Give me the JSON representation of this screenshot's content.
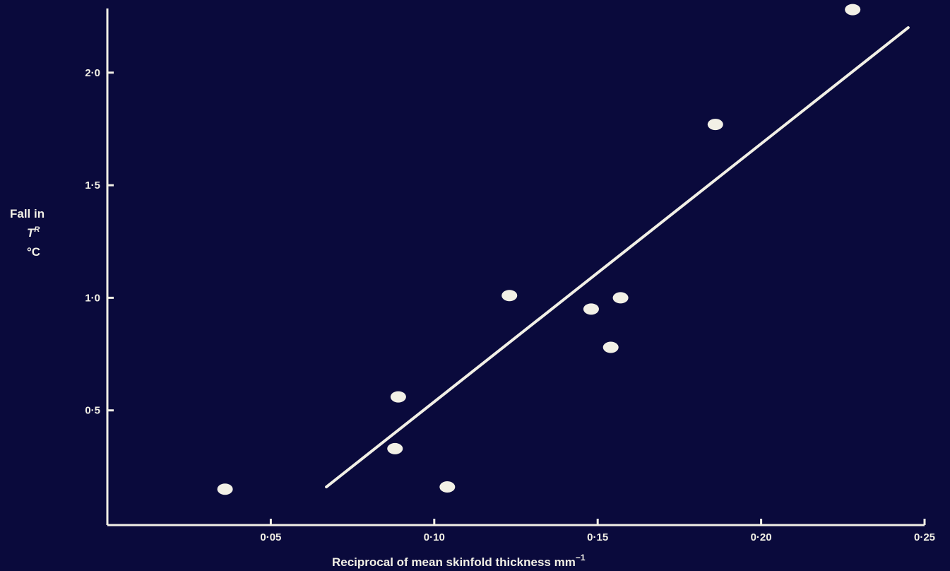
{
  "chart_data": {
    "type": "scatter",
    "xlabel": "Reciprocal of mean skinfold thickness  mm",
    "xlabel_superscript": "−1",
    "ylabel_lines": [
      "Fall in",
      "T",
      "°C"
    ],
    "ylabel_superscript": "R",
    "xlim": [
      0,
      0.25
    ],
    "ylim": [
      0,
      2.3
    ],
    "x_ticks": [
      {
        "value": 0.05,
        "label": "0·05"
      },
      {
        "value": 0.1,
        "label": "0·10"
      },
      {
        "value": 0.15,
        "label": "0·15"
      },
      {
        "value": 0.2,
        "label": "0·20"
      },
      {
        "value": 0.25,
        "label": "0·25"
      }
    ],
    "y_ticks": [
      {
        "value": 0.5,
        "label": "0·5"
      },
      {
        "value": 1.0,
        "label": "1·0"
      },
      {
        "value": 1.5,
        "label": "1·5"
      },
      {
        "value": 2.0,
        "label": "2·0"
      }
    ],
    "points": [
      {
        "x": 0.036,
        "y": 0.15
      },
      {
        "x": 0.088,
        "y": 0.33
      },
      {
        "x": 0.089,
        "y": 0.56
      },
      {
        "x": 0.104,
        "y": 0.16
      },
      {
        "x": 0.123,
        "y": 1.01
      },
      {
        "x": 0.148,
        "y": 0.95
      },
      {
        "x": 0.154,
        "y": 0.78
      },
      {
        "x": 0.157,
        "y": 1.0
      },
      {
        "x": 0.186,
        "y": 1.77
      },
      {
        "x": 0.228,
        "y": 2.28
      }
    ],
    "fit_line": {
      "x1": 0.067,
      "y1": 0.16,
      "x2": 0.245,
      "y2": 2.2
    },
    "grid": false,
    "colors": {
      "background": "#0a0a3c",
      "foreground": "#f2f0e6"
    }
  }
}
